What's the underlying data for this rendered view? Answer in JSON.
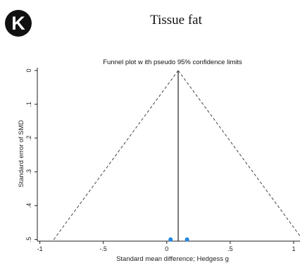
{
  "panel_label": "K",
  "figure_title": "Tissue fat",
  "chart_data": {
    "type": "scatter",
    "title": "Funnel plot w ith pseudo 95% confidence limits",
    "xlabel": "Standard mean difference; Hedgess g",
    "ylabel": "Standard error of SMD",
    "x_ticks": [
      -1,
      -0.5,
      0,
      0.5,
      1
    ],
    "x_tick_labels": [
      "-1",
      "-.5",
      "0",
      ".5",
      "1"
    ],
    "y_ticks": [
      0,
      0.1,
      0.2,
      0.3,
      0.4,
      0.5
    ],
    "y_tick_labels": [
      "0",
      ".1",
      ".2",
      ".3",
      ".4",
      ".5"
    ],
    "xlim": [
      -1.02,
      1.05
    ],
    "ylim": [
      0,
      0.505
    ],
    "y_reversed": true,
    "pooled_estimate": 0.09,
    "points": [
      {
        "x": 0.03,
        "y": 0.5
      },
      {
        "x": 0.16,
        "y": 0.5
      }
    ],
    "point_color": "#1e88e5",
    "grid": false,
    "legend": "none"
  }
}
